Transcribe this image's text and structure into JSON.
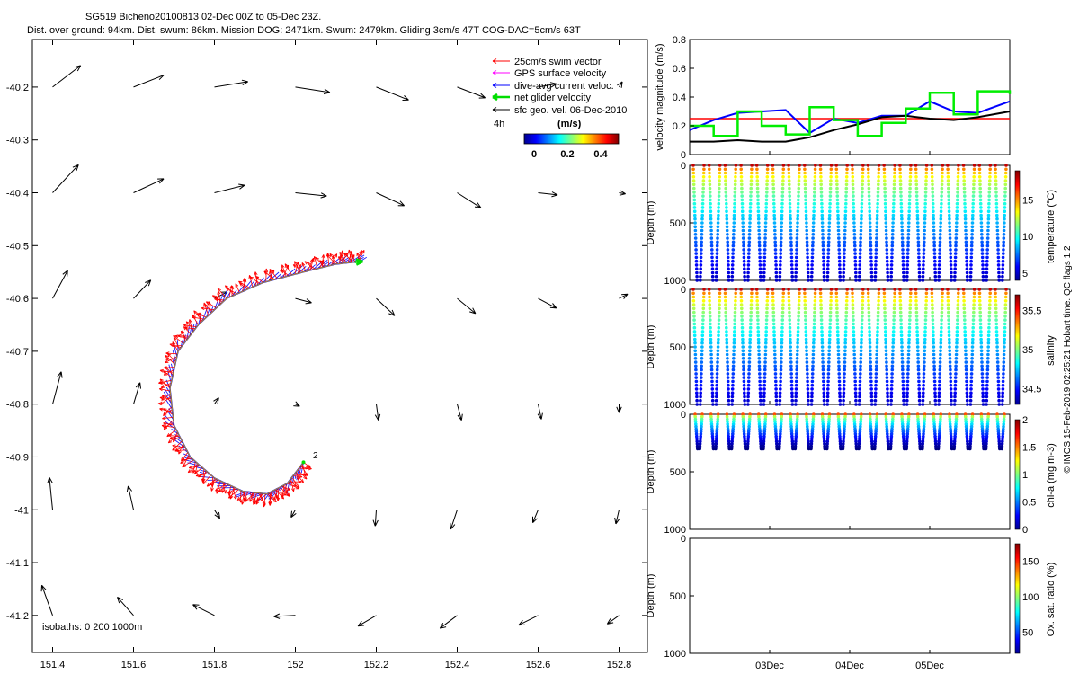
{
  "chart_data": {
    "type": "scatter",
    "title_line1": "SG519 Bicheno20100813 02-Dec 00Z to 05-Dec 23Z.",
    "title_line2": "Dist. over ground: 94km. Dist. swum: 86km. Mission DOG: 2471km. Swum: 2479km. Gliding 3cm/s 47T COG-DAC=5cm/s 63T",
    "map": {
      "xlim": [
        151.35,
        152.87
      ],
      "ylim": [
        -41.27,
        -40.11
      ],
      "xticks": [
        151.4,
        151.6,
        151.8,
        152,
        152.2,
        152.4,
        152.6,
        152.8
      ],
      "xtick_labels": [
        "151.4",
        "151.6",
        "151.8",
        "152",
        "152.2",
        "152.4",
        "152.6",
        "152.8"
      ],
      "yticks": [
        -40.2,
        -40.3,
        -40.4,
        -40.5,
        -40.6,
        -40.7,
        -40.8,
        -40.9,
        -41,
        -41.1,
        -41.2
      ],
      "ytick_labels": [
        "-40.2",
        "-40.3",
        "-40.4",
        "-40.5",
        "-40.6",
        "-40.7",
        "-40.8",
        "-40.9",
        "-41",
        "-41.1",
        "-41.2"
      ],
      "legend": [
        {
          "label": "25cm/s swim vector",
          "color": "#ff0000"
        },
        {
          "label": "GPS surface velocity",
          "color": "#ff00ff"
        },
        {
          "label": "dive-avg current veloc.",
          "color": "#0000ff"
        },
        {
          "label": "net glider velocity",
          "color": "#00dd00"
        },
        {
          "label": "sfc geo. vel. 06-Dec-2010",
          "color": "#000000"
        }
      ],
      "colorbar_label": "(m/s)",
      "colorbar_side_label": "4h",
      "colorbar_ticks": [
        "0",
        "0.2",
        "0.4"
      ],
      "isobath_label": "isobaths: 0   200  1000m",
      "end_marker": "2",
      "track": [
        {
          "lon": 152.02,
          "lat": -40.91
        },
        {
          "lon": 151.98,
          "lat": -40.95
        },
        {
          "lon": 151.93,
          "lat": -40.97
        },
        {
          "lon": 151.87,
          "lat": -40.965
        },
        {
          "lon": 151.8,
          "lat": -40.94
        },
        {
          "lon": 151.74,
          "lat": -40.9
        },
        {
          "lon": 151.7,
          "lat": -40.84
        },
        {
          "lon": 151.69,
          "lat": -40.77
        },
        {
          "lon": 151.71,
          "lat": -40.7
        },
        {
          "lon": 151.76,
          "lat": -40.65
        },
        {
          "lon": 151.83,
          "lat": -40.6
        },
        {
          "lon": 151.92,
          "lat": -40.57
        },
        {
          "lon": 152.02,
          "lat": -40.55
        },
        {
          "lon": 152.1,
          "lat": -40.535
        },
        {
          "lon": 152.16,
          "lat": -40.53
        }
      ],
      "geo_arrows": [
        {
          "lon": 151.4,
          "lat": -40.2,
          "u": 0.26,
          "v": 0.2
        },
        {
          "lon": 151.6,
          "lat": -40.2,
          "u": 0.28,
          "v": 0.11
        },
        {
          "lon": 151.8,
          "lat": -40.2,
          "u": 0.31,
          "v": 0.05
        },
        {
          "lon": 152.0,
          "lat": -40.2,
          "u": 0.32,
          "v": -0.05
        },
        {
          "lon": 152.2,
          "lat": -40.2,
          "u": 0.3,
          "v": -0.12
        },
        {
          "lon": 152.4,
          "lat": -40.2,
          "u": 0.26,
          "v": -0.1
        },
        {
          "lon": 152.6,
          "lat": -40.2,
          "u": 0.17,
          "v": 0.03
        },
        {
          "lon": 152.8,
          "lat": -40.2,
          "u": 0.03,
          "v": 0.05
        },
        {
          "lon": 151.4,
          "lat": -40.4,
          "u": 0.24,
          "v": 0.26
        },
        {
          "lon": 151.6,
          "lat": -40.4,
          "u": 0.28,
          "v": 0.13
        },
        {
          "lon": 151.8,
          "lat": -40.4,
          "u": 0.28,
          "v": 0.07
        },
        {
          "lon": 152.0,
          "lat": -40.4,
          "u": 0.29,
          "v": -0.03
        },
        {
          "lon": 152.2,
          "lat": -40.4,
          "u": 0.26,
          "v": -0.12
        },
        {
          "lon": 152.4,
          "lat": -40.4,
          "u": 0.22,
          "v": -0.14
        },
        {
          "lon": 152.6,
          "lat": -40.4,
          "u": 0.18,
          "v": -0.02
        },
        {
          "lon": 152.8,
          "lat": -40.4,
          "u": 0.06,
          "v": -0.01
        },
        {
          "lon": 151.4,
          "lat": -40.6,
          "u": 0.14,
          "v": 0.26
        },
        {
          "lon": 151.6,
          "lat": -40.6,
          "u": 0.16,
          "v": 0.17
        },
        {
          "lon": 151.8,
          "lat": -40.6,
          "u": 0.12,
          "v": 0.06
        },
        {
          "lon": 152.0,
          "lat": -40.6,
          "u": 0.15,
          "v": -0.04
        },
        {
          "lon": 152.2,
          "lat": -40.6,
          "u": 0.17,
          "v": -0.16
        },
        {
          "lon": 152.4,
          "lat": -40.6,
          "u": 0.17,
          "v": -0.14
        },
        {
          "lon": 152.6,
          "lat": -40.6,
          "u": 0.17,
          "v": -0.09
        },
        {
          "lon": 152.8,
          "lat": -40.6,
          "u": 0.08,
          "v": 0.04
        },
        {
          "lon": 151.4,
          "lat": -40.8,
          "u": 0.08,
          "v": 0.3
        },
        {
          "lon": 151.6,
          "lat": -40.8,
          "u": 0.06,
          "v": 0.2
        },
        {
          "lon": 151.8,
          "lat": -40.8,
          "u": 0.04,
          "v": 0.06
        },
        {
          "lon": 152.0,
          "lat": -40.8,
          "u": 0.04,
          "v": -0.02
        },
        {
          "lon": 152.2,
          "lat": -40.8,
          "u": 0.02,
          "v": -0.15
        },
        {
          "lon": 152.4,
          "lat": -40.8,
          "u": 0.04,
          "v": -0.15
        },
        {
          "lon": 152.6,
          "lat": -40.8,
          "u": 0.03,
          "v": -0.14
        },
        {
          "lon": 152.8,
          "lat": -40.8,
          "u": 0.0,
          "v": -0.08
        },
        {
          "lon": 151.4,
          "lat": -41.0,
          "u": -0.03,
          "v": 0.3
        },
        {
          "lon": 151.6,
          "lat": -41.0,
          "u": -0.05,
          "v": 0.22
        },
        {
          "lon": 151.8,
          "lat": -41.0,
          "u": 0.05,
          "v": -0.08
        },
        {
          "lon": 152.0,
          "lat": -41.0,
          "u": -0.04,
          "v": -0.07
        },
        {
          "lon": 152.2,
          "lat": -41.0,
          "u": -0.01,
          "v": -0.15
        },
        {
          "lon": 152.4,
          "lat": -41.0,
          "u": -0.06,
          "v": -0.18
        },
        {
          "lon": 152.6,
          "lat": -41.0,
          "u": -0.05,
          "v": -0.12
        },
        {
          "lon": 152.8,
          "lat": -41.0,
          "u": -0.03,
          "v": -0.13
        },
        {
          "lon": 151.4,
          "lat": -41.2,
          "u": -0.1,
          "v": 0.28
        },
        {
          "lon": 151.6,
          "lat": -41.2,
          "u": -0.15,
          "v": 0.17
        },
        {
          "lon": 151.8,
          "lat": -41.2,
          "u": -0.2,
          "v": 0.1
        },
        {
          "lon": 152.0,
          "lat": -41.2,
          "u": -0.2,
          "v": -0.01
        },
        {
          "lon": 152.2,
          "lat": -41.2,
          "u": -0.17,
          "v": -0.1
        },
        {
          "lon": 152.4,
          "lat": -41.2,
          "u": -0.16,
          "v": -0.12
        },
        {
          "lon": 152.6,
          "lat": -41.2,
          "u": -0.18,
          "v": -0.09
        },
        {
          "lon": 152.8,
          "lat": -41.2,
          "u": -0.11,
          "v": -0.08
        }
      ]
    },
    "velocity": {
      "ylabel": "velocity magnitude (m/s)",
      "ylim": [
        0,
        0.8
      ],
      "yticks": [
        "0",
        "0.2",
        "0.4",
        "0.6",
        "0.8"
      ],
      "swim_reference": 0.25,
      "x_days": [
        0,
        0.3,
        0.6,
        0.9,
        1.2,
        1.5,
        1.8,
        2.1,
        2.4,
        2.7,
        3.0,
        3.3,
        3.6,
        4.0
      ],
      "series": [
        {
          "name": "dive-avg current",
          "color": "#0000ff",
          "values": [
            0.17,
            0.24,
            0.29,
            0.3,
            0.31,
            0.15,
            0.25,
            0.22,
            0.27,
            0.27,
            0.37,
            0.3,
            0.29,
            0.37
          ]
        },
        {
          "name": "sfc geo. vel.",
          "color": "#000000",
          "values": [
            0.09,
            0.09,
            0.1,
            0.09,
            0.09,
            0.12,
            0.17,
            0.21,
            0.26,
            0.27,
            0.25,
            0.24,
            0.26,
            0.3
          ]
        },
        {
          "name": "net glider velocity",
          "color": "#00ee00",
          "values": [
            0.2,
            0.13,
            0.3,
            0.2,
            0.14,
            0.33,
            0.24,
            0.13,
            0.22,
            0.32,
            0.43,
            0.28,
            0.44,
            0.42
          ]
        }
      ]
    },
    "time_axis": {
      "xlim_days": [
        0,
        4
      ],
      "labels": [
        "03Dec",
        "04Dec",
        "05Dec"
      ],
      "tick_days": [
        1,
        2,
        3
      ]
    },
    "profiles": [
      {
        "name": "temperature",
        "ylabel": "Depth (m)",
        "cbar_label": "temperature (°C)",
        "yticks": [
          "0",
          "500",
          "1000"
        ],
        "cbar_ticks": [
          "5",
          "10",
          "15"
        ],
        "cbar_range": [
          4,
          19
        ],
        "max_depth": 1000,
        "surface_value": 18,
        "deep_value": 5,
        "n_dives": 20
      },
      {
        "name": "salinity",
        "ylabel": "Depth (m)",
        "cbar_label": "salinity",
        "yticks": [
          "0",
          "500",
          "1000"
        ],
        "cbar_ticks": [
          "34.5",
          "35",
          "35.5"
        ],
        "cbar_range": [
          34.3,
          35.7
        ],
        "max_depth": 1000,
        "surface_value": 35.6,
        "deep_value": 34.4,
        "n_dives": 20
      },
      {
        "name": "chlorophyll",
        "ylabel": "Depth (m)",
        "cbar_label": "chl-a (mg m-3)",
        "yticks": [
          "0",
          "500",
          "1000"
        ],
        "cbar_ticks": [
          "0",
          "0.5",
          "1",
          "1.5",
          "2"
        ],
        "cbar_range": [
          0,
          2
        ],
        "max_depth": 300,
        "surface_value": 1.6,
        "deep_value": 0,
        "n_dives": 20
      },
      {
        "name": "oxygen",
        "ylabel": "Depth (m)",
        "cbar_label": "Ox. sat. ratio (%)",
        "yticks": [
          "0",
          "500",
          "1000"
        ],
        "cbar_ticks": [
          "50",
          "100",
          "150"
        ],
        "cbar_range": [
          20,
          175
        ],
        "max_depth": 0,
        "n_dives": 0
      }
    ],
    "footer": "© IMOS 15-Feb-2019 02:25:21 Hobart time. QC flags 1  2"
  }
}
